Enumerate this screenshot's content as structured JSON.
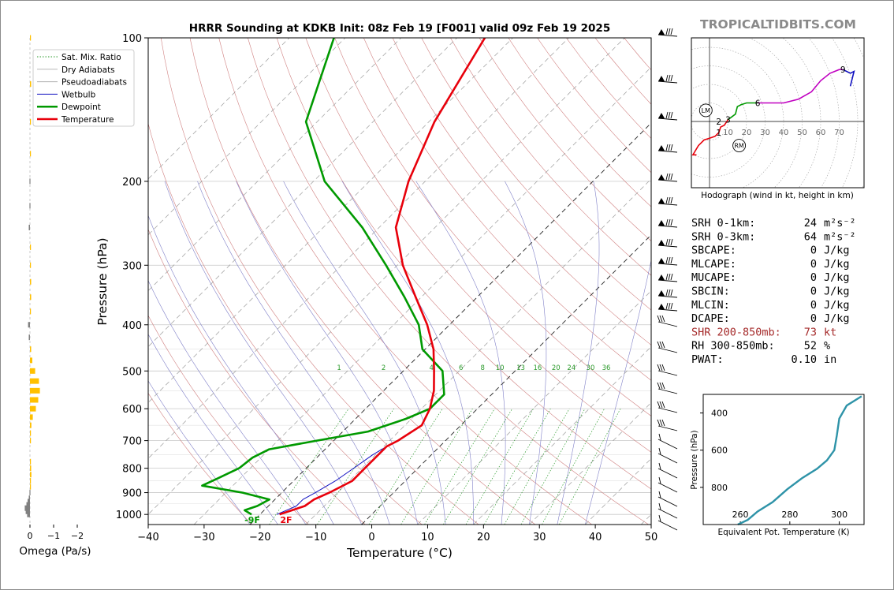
{
  "watermark": "TROPICALTIDBITS.COM",
  "colors": {
    "temperature": "#e8000b",
    "dewpoint": "#009900",
    "wetbulb": "#1010c0",
    "dry_adiabat": "#d08080",
    "moist_adiabat": "#8080c8",
    "mixing_ratio": "#2a9a2a",
    "equiv_pot": "#2e93a8",
    "omega_up": "#ffc000",
    "omega_down": "#808080",
    "index_red": "#a52a2a",
    "hodo_0_1": "#e8000b",
    "hodo_1_3": "#e8000b",
    "hodo_3_6": "#009900",
    "hodo_6_9": "#c000c0",
    "hodo_9_12": "#1010c0"
  },
  "chart_data": [
    {
      "type": "line",
      "name": "skewt",
      "title": "HRRR Sounding at KDKB Init: 08z Feb 19 [F001] valid 09z Feb 19 2025",
      "xlabel": "Temperature (°C)",
      "ylabel": "Pressure (hPa)",
      "xlim": [
        -40,
        50
      ],
      "ylim": [
        1050,
        100
      ],
      "y_scale": "log",
      "skew": "45°",
      "x_ticks": [
        "−40",
        "−30",
        "−20",
        "−10",
        "0",
        "10",
        "20",
        "30",
        "40",
        "50"
      ],
      "x_tick_values": [
        -40,
        -30,
        -20,
        -10,
        0,
        10,
        20,
        30,
        40,
        50
      ],
      "y_ticks": [
        "100",
        "200",
        "300",
        "400",
        "500",
        "600",
        "700",
        "800",
        "900",
        "1000"
      ],
      "y_tick_values": [
        100,
        200,
        300,
        400,
        500,
        600,
        700,
        800,
        900,
        1000
      ],
      "mixing_ratio_labels": [
        "1",
        "2",
        "4",
        "6",
        "8",
        "10",
        "13",
        "16",
        "20",
        "24",
        "30",
        "36"
      ],
      "mixing_ratio_values": [
        1,
        2,
        4,
        6,
        8,
        10,
        13,
        16,
        20,
        24,
        30,
        36
      ],
      "surface_labels": {
        "dewpoint": "-9F",
        "temperature": "2F"
      },
      "legend": {
        "placement": "top-left",
        "entries": [
          "Sat. Mix. Ratio",
          "Dry Adiabats",
          "Pseudoadiabats",
          "Wetbulb",
          "Dewpoint",
          "Temperature"
        ]
      },
      "series": [
        {
          "name": "Temperature",
          "p": [
            1000,
            980,
            960,
            930,
            900,
            850,
            800,
            750,
            720,
            700,
            650,
            600,
            550,
            500,
            450,
            400,
            350,
            300,
            250,
            200,
            150,
            100
          ],
          "t": [
            -16.5,
            -15,
            -13.5,
            -13,
            -11.5,
            -9.5,
            -9.5,
            -9.5,
            -9.5,
            -8.5,
            -7,
            -8.5,
            -11,
            -14.5,
            -18.5,
            -24,
            -31,
            -39,
            -47,
            -53,
            -59,
            -65
          ]
        },
        {
          "name": "Dewpoint",
          "p": [
            1000,
            980,
            960,
            930,
            900,
            870,
            840,
            800,
            760,
            730,
            700,
            670,
            630,
            600,
            560,
            500,
            450,
            400,
            350,
            300,
            250,
            200,
            150,
            100
          ],
          "t": [
            -21.5,
            -23.5,
            -22,
            -21,
            -27,
            -35.5,
            -34,
            -32,
            -31.5,
            -30,
            -23,
            -15.5,
            -11,
            -8.5,
            -8.5,
            -13,
            -20.5,
            -25.5,
            -33,
            -42,
            -53,
            -68,
            -82,
            -92
          ]
        },
        {
          "name": "Wetbulb",
          "p": [
            1000,
            980,
            960,
            930,
            900,
            850,
            800,
            750,
            720,
            700,
            650,
            600,
            550,
            500,
            450,
            400,
            350,
            300,
            250,
            200,
            150,
            100
          ],
          "t": [
            -17,
            -16,
            -15,
            -15,
            -14,
            -12.5,
            -11.5,
            -10.5,
            -9.5,
            -8.5,
            -7,
            -8.5,
            -11,
            -14.5,
            -18.5,
            -24,
            -31,
            -39,
            -47,
            -53,
            -59,
            -65
          ]
        }
      ]
    },
    {
      "type": "bar",
      "name": "omega",
      "xlabel": "Omega (Pa/s)",
      "x_ticks": [
        "0",
        "−1",
        "−2"
      ],
      "x_tick_values": [
        0,
        -1,
        -2
      ],
      "p": [
        1000,
        985,
        970,
        955,
        940,
        925,
        900,
        875,
        850,
        825,
        800,
        775,
        750,
        725,
        700,
        675,
        650,
        625,
        600,
        575,
        550,
        525,
        500,
        475,
        450,
        425,
        400,
        375,
        350,
        325,
        300,
        275,
        250,
        225,
        200,
        175,
        150,
        125,
        100
      ],
      "values": [
        0.12,
        0.18,
        0.22,
        0.15,
        0.1,
        0.05,
        0.02,
        -0.02,
        -0.04,
        -0.06,
        -0.05,
        -0.03,
        -0.01,
        0,
        -0.02,
        -0.04,
        -0.06,
        -0.12,
        -0.25,
        -0.35,
        -0.42,
        -0.38,
        -0.22,
        -0.1,
        -0.05,
        0.05,
        0.08,
        -0.02,
        -0.05,
        -0.05,
        -0.03,
        -0.02,
        0.05,
        0.02,
        0.02,
        -0.02,
        -0.04,
        -0.05,
        -0.03
      ]
    },
    {
      "type": "line",
      "name": "hodograph",
      "caption": "Hodograph (wind in kt, height in km)",
      "ring_labels": [
        "10",
        "20",
        "30",
        "40",
        "50",
        "60",
        "70"
      ],
      "ring_values": [
        10,
        20,
        30,
        40,
        50,
        60,
        70
      ],
      "height_labels": [
        {
          "text": "1",
          "u": 5,
          "v": -6
        },
        {
          "text": "2",
          "u": 5,
          "v": 0
        },
        {
          "text": "3",
          "u": 10,
          "v": 1
        },
        {
          "text": "6",
          "u": 26,
          "v": 10
        },
        {
          "text": "9",
          "u": 72,
          "v": 28
        }
      ],
      "markers": [
        {
          "text": "LM",
          "u": -2,
          "v": 6
        },
        {
          "text": "RM",
          "u": 16,
          "v": -13
        }
      ],
      "segments": [
        {
          "range_km": "0-1",
          "u": [
            -7,
            -9,
            -6,
            -3,
            0,
            3,
            5
          ],
          "v": [
            -18,
            -18,
            -13,
            -10,
            -9,
            -8,
            -6
          ]
        },
        {
          "range_km": "1-3",
          "u": [
            5,
            6,
            8,
            10
          ],
          "v": [
            -6,
            -3,
            -2,
            1
          ]
        },
        {
          "range_km": "3-6",
          "u": [
            10,
            14,
            15,
            17,
            20,
            26
          ],
          "v": [
            1,
            4,
            8,
            9,
            10,
            10
          ]
        },
        {
          "range_km": "6-9",
          "u": [
            26,
            33,
            40,
            48,
            55,
            60,
            65,
            70,
            72
          ],
          "v": [
            10,
            10,
            10,
            12,
            16,
            22,
            26,
            28,
            28
          ]
        },
        {
          "range_km": "9-12",
          "u": [
            72,
            76,
            78,
            76
          ],
          "v": [
            28,
            26,
            27,
            19
          ]
        }
      ]
    },
    {
      "type": "line",
      "name": "equivalent_potential_temperature",
      "xlabel": "Equivalent Pot. Temperature (K)",
      "ylabel": "Pressure (hPa)",
      "x_ticks": [
        "260",
        "280",
        "300"
      ],
      "x_tick_values": [
        260,
        280,
        300
      ],
      "y_ticks": [
        "400",
        "600",
        "800"
      ],
      "y_tick_values": [
        400,
        600,
        800
      ],
      "xlim": [
        245,
        310
      ],
      "ylim": [
        1000,
        300
      ],
      "x": [
        259,
        263,
        267,
        273,
        279,
        285,
        291,
        295,
        298,
        299,
        300,
        303,
        309
      ],
      "y": [
        1000,
        975,
        930,
        880,
        810,
        750,
        700,
        655,
        600,
        520,
        430,
        360,
        310
      ]
    }
  ],
  "indices": [
    {
      "label": "SRH 0-1km:",
      "value": "24",
      "unit": "m²s⁻²",
      "highlight": false
    },
    {
      "label": "SRH 0-3km:",
      "value": "64",
      "unit": "m²s⁻²",
      "highlight": false
    },
    {
      "label": "SBCAPE:",
      "value": "0",
      "unit": "J/kg",
      "highlight": false
    },
    {
      "label": "MLCAPE:",
      "value": "0",
      "unit": "J/kg",
      "highlight": false
    },
    {
      "label": "MUCAPE:",
      "value": "0",
      "unit": "J/kg",
      "highlight": false
    },
    {
      "label": "SBCIN:",
      "value": "0",
      "unit": "J/kg",
      "highlight": false
    },
    {
      "label": "MLCIN:",
      "value": "0",
      "unit": "J/kg",
      "highlight": false
    },
    {
      "label": "DCAPE:",
      "value": "0",
      "unit": "J/kg",
      "highlight": false
    },
    {
      "label": "SHR 200-850mb:",
      "value": "73",
      "unit": "kt",
      "highlight": true
    },
    {
      "label": "RH 300-850mb:",
      "value": "52",
      "unit": "%",
      "highlight": false
    },
    {
      "label": "PWAT:",
      "value": "0.10",
      "unit": "in",
      "highlight": false
    }
  ]
}
